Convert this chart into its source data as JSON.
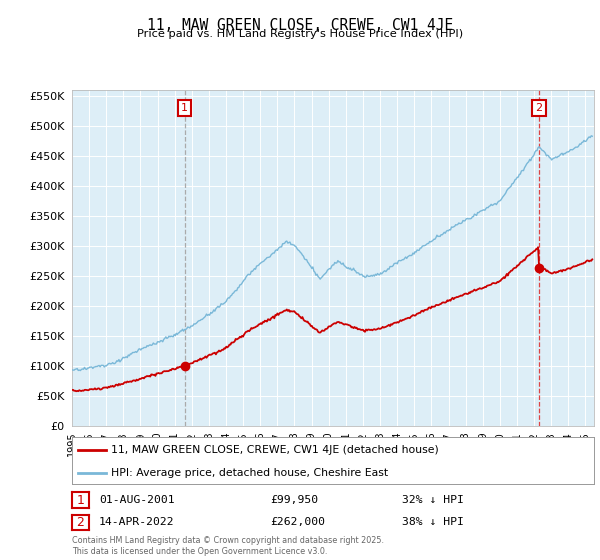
{
  "title": "11, MAW GREEN CLOSE, CREWE, CW1 4JE",
  "subtitle": "Price paid vs. HM Land Registry's House Price Index (HPI)",
  "legend_line1": "11, MAW GREEN CLOSE, CREWE, CW1 4JE (detached house)",
  "legend_line2": "HPI: Average price, detached house, Cheshire East",
  "annotation1_date": "01-AUG-2001",
  "annotation1_price": "£99,950",
  "annotation1_hpi": "32% ↓ HPI",
  "annotation2_date": "14-APR-2022",
  "annotation2_price": "£262,000",
  "annotation2_hpi": "38% ↓ HPI",
  "footer": "Contains HM Land Registry data © Crown copyright and database right 2025.\nThis data is licensed under the Open Government Licence v3.0.",
  "hpi_color": "#7ab8d8",
  "price_color": "#cc0000",
  "marker_color": "#cc0000",
  "dashed1_color": "#aaaaaa",
  "dashed2_color": "#dd4444",
  "annotation_box_color": "#cc0000",
  "background_color": "#ffffff",
  "plot_bg_color": "#ddeef7",
  "grid_color": "#ffffff",
  "ylim": [
    0,
    560000
  ],
  "yticks": [
    0,
    50000,
    100000,
    150000,
    200000,
    250000,
    300000,
    350000,
    400000,
    450000,
    500000,
    550000
  ],
  "xlim_start": 1995.0,
  "xlim_end": 2025.5,
  "sale1_x": 2001.58,
  "sale1_y": 99950,
  "sale2_x": 2022.28,
  "sale2_y": 262000
}
